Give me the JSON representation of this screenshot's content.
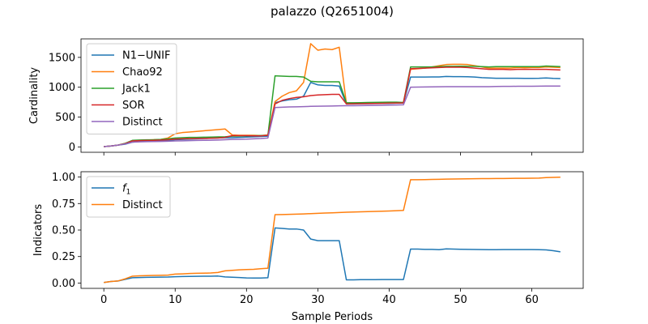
{
  "figure": {
    "title": "palazzo (Q2651004)"
  },
  "chart_data": [
    {
      "type": "line",
      "xlabel": "",
      "ylabel": "Cardinality",
      "xlim": [
        -3.2,
        67.2
      ],
      "ylim": [
        -90,
        1810
      ],
      "xticks": [
        0,
        10,
        20,
        30,
        40,
        50,
        60
      ],
      "yticks": [
        0,
        500,
        1000,
        1500
      ],
      "show_xtick_labels": false,
      "grid": false,
      "legend": "upper-left",
      "x": [
        0,
        1,
        2,
        3,
        4,
        5,
        6,
        7,
        8,
        9,
        10,
        11,
        12,
        13,
        14,
        15,
        16,
        17,
        18,
        19,
        20,
        21,
        22,
        23,
        24,
        25,
        26,
        27,
        28,
        29,
        30,
        31,
        32,
        33,
        34,
        35,
        36,
        37,
        38,
        39,
        40,
        41,
        42,
        43,
        44,
        45,
        46,
        47,
        48,
        49,
        50,
        51,
        52,
        53,
        54,
        55,
        56,
        57,
        58,
        59,
        60,
        61,
        62,
        63,
        64
      ],
      "series": [
        {
          "name": "N1−UNIF",
          "color": "#1f77b4",
          "values": [
            5,
            15,
            30,
            45,
            80,
            90,
            95,
            100,
            100,
            105,
            120,
            125,
            130,
            135,
            140,
            145,
            150,
            155,
            155,
            160,
            165,
            170,
            175,
            180,
            740,
            770,
            790,
            800,
            850,
            1080,
            1040,
            1030,
            1030,
            1020,
            720,
            720,
            722,
            724,
            726,
            728,
            730,
            732,
            735,
            1170,
            1170,
            1170,
            1172,
            1172,
            1180,
            1178,
            1178,
            1175,
            1170,
            1160,
            1155,
            1150,
            1150,
            1150,
            1150,
            1148,
            1148,
            1150,
            1155,
            1148,
            1145
          ]
        },
        {
          "name": "Chao92",
          "color": "#ff7f0e",
          "values": [
            5,
            15,
            30,
            60,
            100,
            110,
            115,
            120,
            125,
            150,
            220,
            240,
            250,
            260,
            270,
            280,
            290,
            300,
            200,
            195,
            195,
            195,
            190,
            200,
            760,
            850,
            910,
            940,
            1080,
            1730,
            1620,
            1640,
            1630,
            1670,
            730,
            730,
            732,
            734,
            736,
            738,
            740,
            742,
            740,
            1300,
            1310,
            1320,
            1340,
            1360,
            1380,
            1385,
            1385,
            1380,
            1360,
            1340,
            1320,
            1320,
            1320,
            1320,
            1330,
            1325,
            1330,
            1330,
            1340,
            1335,
            1330
          ]
        },
        {
          "name": "Jack1",
          "color": "#2ca02c",
          "values": [
            5,
            15,
            30,
            60,
            110,
            115,
            118,
            120,
            125,
            135,
            150,
            155,
            160,
            160,
            162,
            165,
            168,
            170,
            180,
            182,
            185,
            187,
            190,
            195,
            1190,
            1185,
            1180,
            1180,
            1170,
            1100,
            1090,
            1090,
            1090,
            1090,
            740,
            740,
            742,
            744,
            746,
            748,
            750,
            750,
            745,
            1340,
            1340,
            1340,
            1340,
            1345,
            1350,
            1350,
            1352,
            1350,
            1350,
            1345,
            1340,
            1345,
            1345,
            1345,
            1345,
            1345,
            1345,
            1345,
            1355,
            1350,
            1345
          ]
        },
        {
          "name": "SOR",
          "color": "#d62728",
          "values": [
            5,
            15,
            30,
            55,
            100,
            105,
            108,
            110,
            115,
            120,
            130,
            135,
            138,
            140,
            142,
            145,
            150,
            160,
            190,
            188,
            188,
            185,
            185,
            195,
            720,
            780,
            810,
            830,
            840,
            860,
            870,
            875,
            880,
            880,
            720,
            722,
            724,
            726,
            728,
            730,
            732,
            734,
            738,
            1310,
            1315,
            1320,
            1325,
            1330,
            1335,
            1335,
            1335,
            1330,
            1320,
            1310,
            1300,
            1300,
            1300,
            1295,
            1300,
            1300,
            1300,
            1300,
            1300,
            1295,
            1290
          ]
        },
        {
          "name": "Distinct",
          "color": "#9467bd",
          "values": [
            5,
            15,
            30,
            50,
            80,
            85,
            88,
            90,
            92,
            95,
            100,
            102,
            105,
            108,
            110,
            112,
            115,
            120,
            125,
            128,
            130,
            135,
            140,
            150,
            660,
            665,
            670,
            672,
            675,
            680,
            682,
            684,
            686,
            688,
            690,
            690,
            692,
            694,
            696,
            698,
            700,
            702,
            705,
            1000,
            1002,
            1004,
            1006,
            1008,
            1010,
            1010,
            1010,
            1010,
            1010,
            1010,
            1010,
            1012,
            1014,
            1014,
            1016,
            1016,
            1016,
            1018,
            1020,
            1020,
            1020
          ]
        }
      ]
    },
    {
      "type": "line",
      "xlabel": "Sample Periods",
      "ylabel": "Indicators",
      "xlim": [
        -3.2,
        67.2
      ],
      "ylim": [
        -0.05,
        1.05
      ],
      "xticks": [
        0,
        10,
        20,
        30,
        40,
        50,
        60
      ],
      "yticks": [
        0.0,
        0.25,
        0.5,
        0.75,
        1.0
      ],
      "ytick_labels": [
        "0.00",
        "0.25",
        "0.50",
        "0.75",
        "1.00"
      ],
      "show_xtick_labels": true,
      "grid": false,
      "legend": "upper-left",
      "x": [
        0,
        1,
        2,
        3,
        4,
        5,
        6,
        7,
        8,
        9,
        10,
        11,
        12,
        13,
        14,
        15,
        16,
        17,
        18,
        19,
        20,
        21,
        22,
        23,
        24,
        25,
        26,
        27,
        28,
        29,
        30,
        31,
        32,
        33,
        34,
        35,
        36,
        37,
        38,
        39,
        40,
        41,
        42,
        43,
        44,
        45,
        46,
        47,
        48,
        49,
        50,
        51,
        52,
        53,
        54,
        55,
        56,
        57,
        58,
        59,
        60,
        61,
        62,
        63,
        64
      ],
      "series": [
        {
          "name": "f1",
          "color": "#1f77b4",
          "values": [
            0.005,
            0.015,
            0.02,
            0.035,
            0.05,
            0.052,
            0.054,
            0.055,
            0.056,
            0.057,
            0.06,
            0.062,
            0.063,
            0.064,
            0.065,
            0.065,
            0.066,
            0.058,
            0.055,
            0.052,
            0.048,
            0.047,
            0.047,
            0.05,
            0.52,
            0.515,
            0.51,
            0.51,
            0.5,
            0.415,
            0.4,
            0.4,
            0.4,
            0.4,
            0.03,
            0.03,
            0.032,
            0.032,
            0.032,
            0.033,
            0.033,
            0.033,
            0.033,
            0.32,
            0.32,
            0.318,
            0.318,
            0.315,
            0.322,
            0.32,
            0.319,
            0.318,
            0.317,
            0.316,
            0.315,
            0.315,
            0.316,
            0.316,
            0.316,
            0.316,
            0.316,
            0.315,
            0.313,
            0.305,
            0.295
          ]
        },
        {
          "name": "Distinct",
          "color": "#ff7f0e",
          "values": [
            0.005,
            0.015,
            0.02,
            0.04,
            0.065,
            0.068,
            0.07,
            0.072,
            0.073,
            0.075,
            0.085,
            0.087,
            0.09,
            0.092,
            0.093,
            0.095,
            0.1,
            0.115,
            0.12,
            0.125,
            0.128,
            0.13,
            0.135,
            0.14,
            0.645,
            0.646,
            0.648,
            0.65,
            0.652,
            0.655,
            0.658,
            0.66,
            0.662,
            0.665,
            0.668,
            0.67,
            0.672,
            0.674,
            0.676,
            0.678,
            0.68,
            0.682,
            0.685,
            0.975,
            0.975,
            0.976,
            0.977,
            0.978,
            0.98,
            0.981,
            0.982,
            0.983,
            0.984,
            0.985,
            0.985,
            0.986,
            0.986,
            0.987,
            0.988,
            0.988,
            0.989,
            0.99,
            0.995,
            0.997,
            0.998
          ]
        }
      ]
    }
  ]
}
